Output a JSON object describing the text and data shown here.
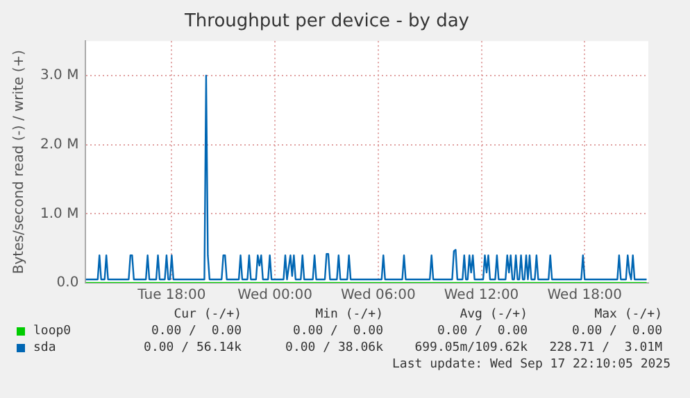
{
  "chart_data": {
    "type": "line",
    "title": "Throughput per device - by day",
    "ylabel": "Bytes/second read (-) / write (+)",
    "xlim": [
      "2025-09-16T13:00",
      "2025-09-17T21:42"
    ],
    "xticks": [
      {
        "value": "2025-09-16T18:00",
        "label": "Tue 18:00"
      },
      {
        "value": "2025-09-17T00:00",
        "label": "Wed 00:00"
      },
      {
        "value": "2025-09-17T06:00",
        "label": "Wed 06:00"
      },
      {
        "value": "2025-09-17T12:00",
        "label": "Wed 12:00"
      },
      {
        "value": "2025-09-17T18:00",
        "label": "Wed 18:00"
      }
    ],
    "ylim": [
      0,
      3500000
    ],
    "yticks": [
      {
        "value": 0,
        "label": "0.0"
      },
      {
        "value": 1000000,
        "label": "1.0 M"
      },
      {
        "value": 2000000,
        "label": "2.0 M"
      },
      {
        "value": 3000000,
        "label": "3.0 M"
      }
    ],
    "grid": true,
    "legend": "bottom",
    "marker": "none",
    "series": [
      {
        "name": "loop0",
        "color": "#00cc00",
        "x": [
          "2025-09-16T13:00",
          "2025-09-17T21:36"
        ],
        "values": [
          0,
          0
        ]
      },
      {
        "name": "sda",
        "color": "#0066b3",
        "x": [
          "2025-09-16T13:00",
          "2025-09-16T13:42",
          "2025-09-16T13:48",
          "2025-09-16T13:54",
          "2025-09-16T14:06",
          "2025-09-16T14:12",
          "2025-09-16T14:18",
          "2025-09-16T15:30",
          "2025-09-16T15:36",
          "2025-09-16T15:42",
          "2025-09-16T15:48",
          "2025-09-16T16:30",
          "2025-09-16T16:36",
          "2025-09-16T16:42",
          "2025-09-16T17:06",
          "2025-09-16T17:12",
          "2025-09-16T17:18",
          "2025-09-16T17:36",
          "2025-09-16T17:42",
          "2025-09-16T17:48",
          "2025-09-16T17:54",
          "2025-09-16T18:00",
          "2025-09-16T18:06",
          "2025-09-16T19:54",
          "2025-09-16T20:00",
          "2025-09-16T20:06",
          "2025-09-16T20:12",
          "2025-09-16T20:54",
          "2025-09-16T21:00",
          "2025-09-16T21:06",
          "2025-09-16T21:12",
          "2025-09-16T21:54",
          "2025-09-16T22:00",
          "2025-09-16T22:06",
          "2025-09-16T22:24",
          "2025-09-16T22:30",
          "2025-09-16T22:36",
          "2025-09-16T22:54",
          "2025-09-16T23:00",
          "2025-09-16T23:06",
          "2025-09-16T23:12",
          "2025-09-16T23:18",
          "2025-09-16T23:36",
          "2025-09-16T23:42",
          "2025-09-16T23:48",
          "2025-09-17T00:30",
          "2025-09-17T00:36",
          "2025-09-17T00:42",
          "2025-09-17T00:54",
          "2025-09-17T01:00",
          "2025-09-17T01:06",
          "2025-09-17T01:12",
          "2025-09-17T01:30",
          "2025-09-17T01:36",
          "2025-09-17T01:42",
          "2025-09-17T02:12",
          "2025-09-17T02:18",
          "2025-09-17T02:24",
          "2025-09-17T02:54",
          "2025-09-17T03:00",
          "2025-09-17T03:06",
          "2025-09-17T03:12",
          "2025-09-17T03:36",
          "2025-09-17T03:42",
          "2025-09-17T03:48",
          "2025-09-17T04:12",
          "2025-09-17T04:18",
          "2025-09-17T04:24",
          "2025-09-17T06:12",
          "2025-09-17T06:18",
          "2025-09-17T06:24",
          "2025-09-17T07:24",
          "2025-09-17T07:30",
          "2025-09-17T07:36",
          "2025-09-17T09:00",
          "2025-09-17T09:06",
          "2025-09-17T09:12",
          "2025-09-17T10:18",
          "2025-09-17T10:24",
          "2025-09-17T10:30",
          "2025-09-17T10:36",
          "2025-09-17T10:54",
          "2025-09-17T11:00",
          "2025-09-17T11:06",
          "2025-09-17T11:12",
          "2025-09-17T11:18",
          "2025-09-17T11:24",
          "2025-09-17T11:30",
          "2025-09-17T11:36",
          "2025-09-17T12:06",
          "2025-09-17T12:12",
          "2025-09-17T12:18",
          "2025-09-17T12:24",
          "2025-09-17T12:30",
          "2025-09-17T12:48",
          "2025-09-17T12:54",
          "2025-09-17T13:00",
          "2025-09-17T13:24",
          "2025-09-17T13:30",
          "2025-09-17T13:36",
          "2025-09-17T13:42",
          "2025-09-17T13:48",
          "2025-09-17T13:54",
          "2025-09-17T14:00",
          "2025-09-17T14:06",
          "2025-09-17T14:12",
          "2025-09-17T14:18",
          "2025-09-17T14:24",
          "2025-09-17T14:30",
          "2025-09-17T14:36",
          "2025-09-17T14:42",
          "2025-09-17T14:48",
          "2025-09-17T14:54",
          "2025-09-17T15:06",
          "2025-09-17T15:12",
          "2025-09-17T15:18",
          "2025-09-17T15:54",
          "2025-09-17T16:00",
          "2025-09-17T16:06",
          "2025-09-17T17:48",
          "2025-09-17T17:54",
          "2025-09-17T18:00",
          "2025-09-17T19:54",
          "2025-09-17T20:00",
          "2025-09-17T20:06",
          "2025-09-17T20:24",
          "2025-09-17T20:30",
          "2025-09-17T20:36",
          "2025-09-17T20:42",
          "2025-09-17T20:48",
          "2025-09-17T20:54",
          "2025-09-17T21:36"
        ],
        "values": [
          50000,
          50000,
          400000,
          50000,
          50000,
          400000,
          50000,
          50000,
          400000,
          400000,
          50000,
          50000,
          400000,
          50000,
          50000,
          400000,
          50000,
          50000,
          400000,
          50000,
          50000,
          400000,
          50000,
          50000,
          3000000,
          400000,
          50000,
          50000,
          400000,
          400000,
          50000,
          50000,
          400000,
          50000,
          50000,
          400000,
          50000,
          50000,
          400000,
          250000,
          400000,
          50000,
          50000,
          400000,
          50000,
          50000,
          400000,
          50000,
          400000,
          100000,
          400000,
          50000,
          50000,
          400000,
          50000,
          50000,
          400000,
          50000,
          50000,
          420000,
          420000,
          50000,
          50000,
          400000,
          50000,
          50000,
          400000,
          50000,
          50000,
          400000,
          50000,
          50000,
          400000,
          50000,
          50000,
          400000,
          50000,
          50000,
          460000,
          480000,
          50000,
          50000,
          400000,
          50000,
          50000,
          400000,
          150000,
          400000,
          50000,
          50000,
          400000,
          150000,
          400000,
          50000,
          50000,
          400000,
          50000,
          50000,
          400000,
          150000,
          400000,
          50000,
          50000,
          400000,
          50000,
          50000,
          400000,
          50000,
          50000,
          400000,
          50000,
          400000,
          50000,
          50000,
          400000,
          50000,
          50000,
          400000,
          50000,
          50000,
          400000,
          50000,
          50000,
          400000,
          50000,
          50000,
          400000,
          150000,
          50000,
          400000,
          50000,
          50000
        ]
      }
    ],
    "annotations": [
      "Cur (-/+)",
      "Min (-/+)",
      "Avg (-/+)",
      "Max (-/+)",
      "0.00 /  0.00",
      "0.00 /  0.00",
      "0.00 /  0.00",
      "0.00 /  0.00",
      "0.00 / 56.14k",
      "0.00 / 38.06k",
      "699.05m/109.62k",
      "228.71 /  3.01M",
      "Last update: Wed Sep 17 22:10:05 2025"
    ]
  }
}
